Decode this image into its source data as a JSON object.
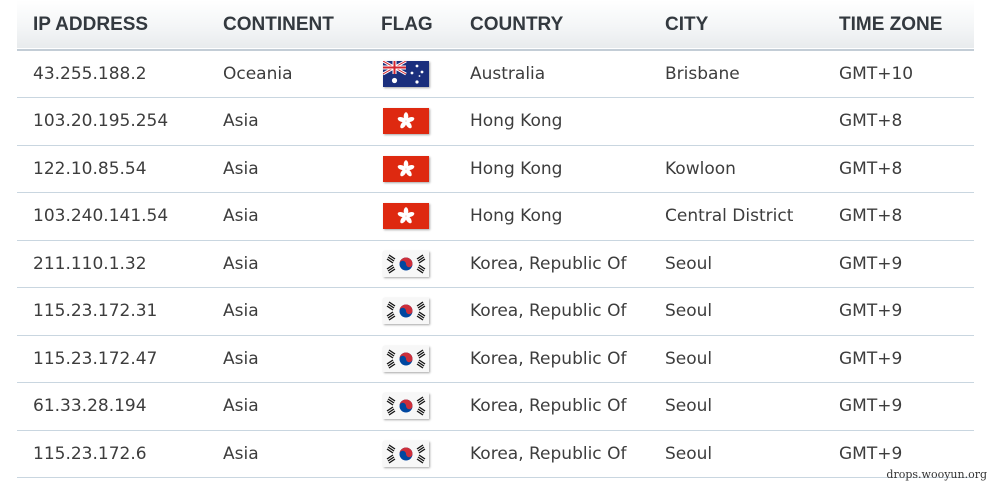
{
  "table": {
    "headers": [
      "IP ADDRESS",
      "CONTINENT",
      "FLAG",
      "COUNTRY",
      "CITY",
      "TIME ZONE"
    ],
    "rows": [
      {
        "ip": "43.255.188.2",
        "continent": "Oceania",
        "flag": "australia-flag-icon",
        "country": "Australia",
        "city": "Brisbane",
        "timezone": "GMT+10"
      },
      {
        "ip": "103.20.195.254",
        "continent": "Asia",
        "flag": "hong-kong-flag-icon",
        "country": "Hong Kong",
        "city": "",
        "timezone": "GMT+8"
      },
      {
        "ip": "122.10.85.54",
        "continent": "Asia",
        "flag": "hong-kong-flag-icon",
        "country": "Hong Kong",
        "city": "Kowloon",
        "timezone": "GMT+8"
      },
      {
        "ip": "103.240.141.54",
        "continent": "Asia",
        "flag": "hong-kong-flag-icon",
        "country": "Hong Kong",
        "city": "Central District",
        "timezone": "GMT+8"
      },
      {
        "ip": "211.110.1.32",
        "continent": "Asia",
        "flag": "korea-flag-icon",
        "country": "Korea, Republic Of",
        "city": "Seoul",
        "timezone": "GMT+9"
      },
      {
        "ip": "115.23.172.31",
        "continent": "Asia",
        "flag": "korea-flag-icon",
        "country": "Korea, Republic Of",
        "city": "Seoul",
        "timezone": "GMT+9"
      },
      {
        "ip": "115.23.172.47",
        "continent": "Asia",
        "flag": "korea-flag-icon",
        "country": "Korea, Republic Of",
        "city": "Seoul",
        "timezone": "GMT+9"
      },
      {
        "ip": "61.33.28.194",
        "continent": "Asia",
        "flag": "korea-flag-icon",
        "country": "Korea, Republic Of",
        "city": "Seoul",
        "timezone": "GMT+9"
      },
      {
        "ip": "115.23.172.6",
        "continent": "Asia",
        "flag": "korea-flag-icon",
        "country": "Korea, Republic Of",
        "city": "Seoul",
        "timezone": "GMT+9"
      }
    ]
  },
  "watermark": "drops.wooyun.org",
  "colors": {
    "header_text": "#33393f",
    "cell_text": "#3d3d3d",
    "row_border": "#c9d6e0",
    "hk_red": "#de2910",
    "au_blue": "#1b2f7d",
    "kr_red": "#cd2e3a",
    "kr_blue": "#0047a0"
  }
}
